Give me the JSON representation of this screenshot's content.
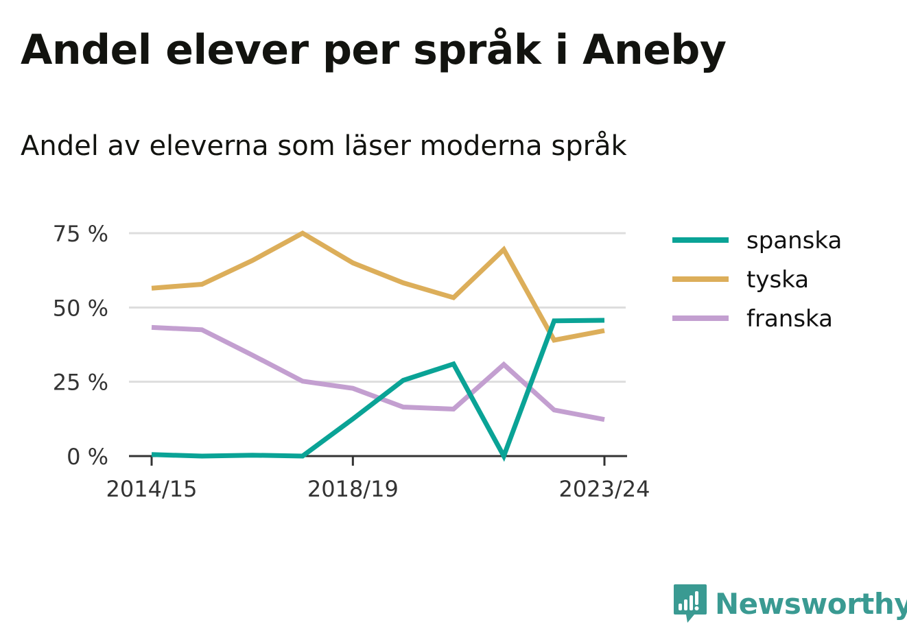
{
  "title": "Andel elever per språk i Aneby",
  "subtitle": "Andel av eleverna som läser moderna språk",
  "brand": {
    "name": "Newsworthy",
    "color": "#3a9a92",
    "icon": "newsworthy-logo-icon"
  },
  "chart_data": {
    "type": "line",
    "x": [
      "2014/15",
      "2015/16",
      "2016/17",
      "2017/18",
      "2018/19",
      "2019/20",
      "2020/21",
      "2021/22",
      "2022/23",
      "2023/24"
    ],
    "x_tick_labels": [
      "2014/15",
      "2018/19",
      "2023/24"
    ],
    "y_tick_labels": [
      "0 %",
      "25 %",
      "50 %",
      "75 %"
    ],
    "y_ticks": [
      0,
      25,
      50,
      75
    ],
    "ylim": [
      0,
      75
    ],
    "grid": true,
    "legend_position": "right",
    "series": [
      {
        "name": "spanska",
        "color": "#0aa396",
        "values": [
          0.5,
          0,
          0.3,
          0,
          12.5,
          25.5,
          31,
          0,
          45.5,
          45.7
        ]
      },
      {
        "name": "tyska",
        "color": "#dcae5a",
        "values": [
          56.5,
          57.8,
          65.8,
          75,
          65,
          58.3,
          53.3,
          69.5,
          39,
          42.2
        ]
      },
      {
        "name": "franska",
        "color": "#c39fd0",
        "values": [
          43.3,
          42.5,
          34,
          25.2,
          22.8,
          16.5,
          15.8,
          30.8,
          15.5,
          12.3
        ]
      }
    ]
  }
}
